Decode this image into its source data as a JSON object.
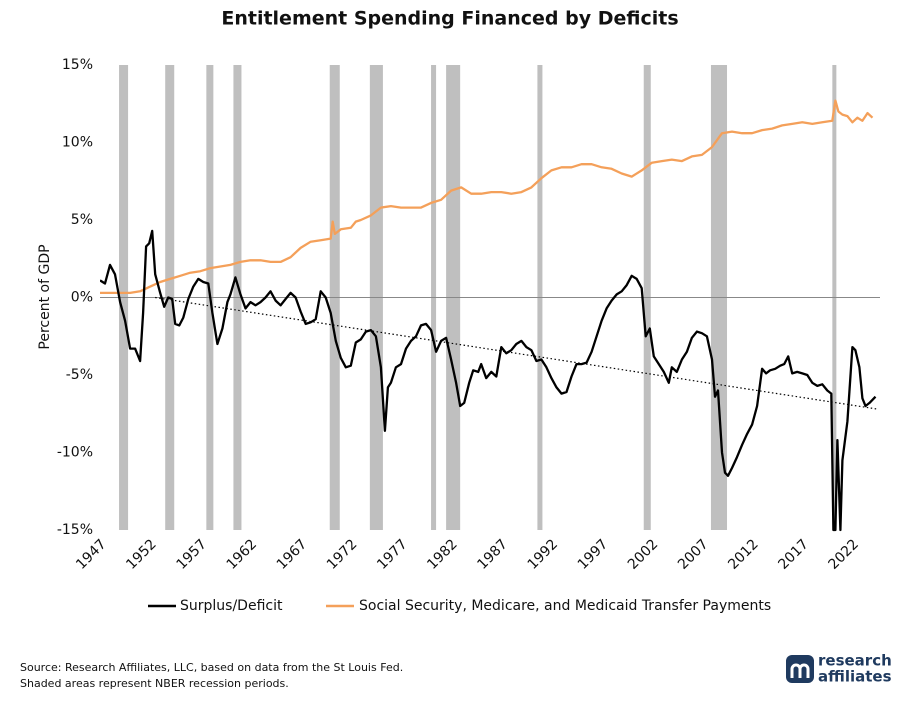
{
  "chart_data": {
    "type": "line",
    "title": "Entitlement Spending Financed by Deficits",
    "y_label": "Percent of GDP",
    "xlim": [
      1947,
      2024.75
    ],
    "ylim": [
      -15,
      15
    ],
    "xticks": [
      1947,
      1952,
      1957,
      1962,
      1967,
      1972,
      1977,
      1982,
      1987,
      1992,
      1997,
      2002,
      2007,
      2012,
      2017,
      2022
    ],
    "yticks": [
      {
        "value": 15,
        "label": "15%"
      },
      {
        "value": 10,
        "label": "10%"
      },
      {
        "value": 5,
        "label": "5%"
      },
      {
        "value": 0,
        "label": "0%"
      },
      {
        "value": -5,
        "label": "-5%"
      },
      {
        "value": -10,
        "label": "-10%"
      },
      {
        "value": -15,
        "label": "-15%"
      }
    ],
    "recession_color": "#bfbfbf",
    "recessions": [
      [
        1948.9,
        1949.8
      ],
      [
        1953.5,
        1954.4
      ],
      [
        1957.6,
        1958.3
      ],
      [
        1960.3,
        1961.1
      ],
      [
        1969.9,
        1970.9
      ],
      [
        1973.9,
        1975.2
      ],
      [
        1980.0,
        1980.5
      ],
      [
        1981.5,
        1982.9
      ],
      [
        1990.6,
        1991.1
      ],
      [
        2001.2,
        2001.9
      ],
      [
        2007.9,
        2009.5
      ],
      [
        2020.0,
        2020.4
      ]
    ],
    "series": [
      {
        "name": "Surplus/Deficit",
        "color": "#000000",
        "x": [
          1947,
          1947.5,
          1948,
          1948.5,
          1949,
          1949.5,
          1950,
          1950.5,
          1951,
          1951.3,
          1951.6,
          1951.9,
          1952.2,
          1952.5,
          1953,
          1953.4,
          1953.8,
          1954.2,
          1954.5,
          1954.9,
          1955.3,
          1955.8,
          1956.3,
          1956.8,
          1957.3,
          1957.8,
          1958.2,
          1958.7,
          1959.2,
          1959.7,
          1960,
          1960.5,
          1961,
          1961.5,
          1962,
          1962.5,
          1963,
          1963.5,
          1964,
          1964.5,
          1965,
          1965.5,
          1966,
          1966.5,
          1967,
          1967.5,
          1968,
          1968.5,
          1969,
          1969.5,
          1970,
          1970.5,
          1971,
          1971.5,
          1972,
          1972.5,
          1973,
          1973.5,
          1974,
          1974.5,
          1975,
          1975.4,
          1975.7,
          1976,
          1976.5,
          1977,
          1977.5,
          1978,
          1978.5,
          1979,
          1979.5,
          1980,
          1980.5,
          1981,
          1981.5,
          1982,
          1982.5,
          1982.9,
          1983.3,
          1983.8,
          1984.2,
          1984.7,
          1985,
          1985.5,
          1986,
          1986.5,
          1987,
          1987.5,
          1988,
          1988.5,
          1989,
          1989.5,
          1990,
          1990.5,
          1991,
          1991.5,
          1992,
          1992.5,
          1993,
          1993.5,
          1994,
          1994.5,
          1995,
          1995.5,
          1996,
          1996.5,
          1997,
          1997.5,
          1998,
          1998.5,
          1999,
          1999.5,
          2000,
          2000.5,
          2001,
          2001.4,
          2001.8,
          2002.2,
          2002.7,
          2003.2,
          2003.7,
          2004,
          2004.5,
          2005,
          2005.5,
          2006,
          2006.5,
          2007,
          2007.5,
          2008,
          2008.3,
          2008.6,
          2009,
          2009.3,
          2009.6,
          2010,
          2010.5,
          2011,
          2011.5,
          2012,
          2012.5,
          2013,
          2013.4,
          2013.8,
          2014.3,
          2014.8,
          2015.2,
          2015.6,
          2016,
          2016.5,
          2017,
          2017.5,
          2018,
          2018.5,
          2019,
          2019.5,
          2019.9,
          2020.1,
          2020.3,
          2020.5,
          2020.8,
          2021,
          2021.5,
          2022,
          2022.3,
          2022.7,
          2023,
          2023.3,
          2023.7,
          2024.3
        ],
        "values": [
          1.1,
          0.9,
          2.1,
          1.5,
          -0.3,
          -1.5,
          -3.3,
          -3.3,
          -4.1,
          -1,
          3.3,
          3.5,
          4.3,
          1.5,
          0.3,
          -0.6,
          0,
          -0.1,
          -1.7,
          -1.8,
          -1.3,
          -0.1,
          0.7,
          1.2,
          1.0,
          0.9,
          -1,
          -3,
          -2,
          -0.3,
          0.2,
          1.3,
          0.2,
          -0.7,
          -0.3,
          -0.5,
          -0.3,
          0,
          0.4,
          -0.2,
          -0.5,
          -0.1,
          0.3,
          0.0,
          -0.9,
          -1.7,
          -1.6,
          -1.4,
          0.4,
          0,
          -1,
          -2.8,
          -3.9,
          -4.5,
          -4.4,
          -2.9,
          -2.7,
          -2.2,
          -2.1,
          -2.5,
          -4.5,
          -8.6,
          -5.8,
          -5.5,
          -4.5,
          -4.3,
          -3.3,
          -2.8,
          -2.5,
          -1.8,
          -1.7,
          -2.1,
          -3.5,
          -2.8,
          -2.6,
          -4,
          -5.5,
          -7,
          -6.8,
          -5.5,
          -4.7,
          -4.8,
          -4.3,
          -5.2,
          -4.8,
          -5.1,
          -3.2,
          -3.6,
          -3.4,
          -3.0,
          -2.8,
          -3.2,
          -3.4,
          -4.1,
          -4.0,
          -4.5,
          -5.2,
          -5.8,
          -6.2,
          -6.1,
          -5.1,
          -4.3,
          -4.3,
          -4.2,
          -3.5,
          -2.5,
          -1.5,
          -0.7,
          -0.2,
          0.2,
          0.4,
          0.8,
          1.4,
          1.2,
          0.6,
          -2.5,
          -2.0,
          -3.8,
          -4.3,
          -4.8,
          -5.5,
          -4.5,
          -4.8,
          -4.0,
          -3.5,
          -2.6,
          -2.2,
          -2.3,
          -2.5,
          -4,
          -6.4,
          -6,
          -10.0,
          -11.3,
          -11.5,
          -11.0,
          -10.3,
          -9.5,
          -8.8,
          -8.2,
          -7,
          -4.6,
          -4.9,
          -4.7,
          -4.6,
          -4.4,
          -4.3,
          -3.8,
          -4.9,
          -4.8,
          -4.9,
          -5.0,
          -5.5,
          -5.7,
          -5.6,
          -6.0,
          -6.2,
          -15,
          -15,
          -9.2,
          -15,
          -10.5,
          -8,
          -3.2,
          -3.4,
          -4.5,
          -6.5,
          -7,
          -6.8,
          -6.4
        ]
      },
      {
        "name": "Social Security, Medicare, and Medicaid Transfer Payments",
        "color": "#f4a05a",
        "x": [
          1947,
          1950,
          1951,
          1952,
          1953,
          1954,
          1955,
          1956,
          1957,
          1958,
          1959,
          1960,
          1961,
          1962,
          1963,
          1964,
          1965,
          1966,
          1967,
          1968,
          1969,
          1970,
          1970.2,
          1970.4,
          1971,
          1972,
          1972.5,
          1973,
          1974,
          1975,
          1976,
          1977,
          1978,
          1979,
          1980,
          1981,
          1982,
          1983,
          1984,
          1985,
          1986,
          1987,
          1988,
          1989,
          1990,
          1991,
          1992,
          1993,
          1994,
          1995,
          1996,
          1997,
          1998,
          1999,
          2000,
          2001,
          2002,
          2003,
          2004,
          2005,
          2006,
          2007,
          2008,
          2009,
          2010,
          2011,
          2012,
          2013,
          2014,
          2015,
          2016,
          2017,
          2018,
          2019,
          2020,
          2020.3,
          2020.6,
          2021,
          2021.5,
          2022,
          2022.5,
          2023,
          2023.5,
          2024
        ],
        "values": [
          0.3,
          0.3,
          0.4,
          0.7,
          1.0,
          1.2,
          1.4,
          1.6,
          1.7,
          1.9,
          2.0,
          2.1,
          2.3,
          2.4,
          2.4,
          2.3,
          2.3,
          2.6,
          3.2,
          3.6,
          3.7,
          3.8,
          4.9,
          4.1,
          4.4,
          4.5,
          4.9,
          5.0,
          5.3,
          5.8,
          5.9,
          5.8,
          5.8,
          5.8,
          6.1,
          6.3,
          6.9,
          7.1,
          6.7,
          6.7,
          6.8,
          6.8,
          6.7,
          6.8,
          7.1,
          7.7,
          8.2,
          8.4,
          8.4,
          8.6,
          8.6,
          8.4,
          8.3,
          8.0,
          7.8,
          8.2,
          8.7,
          8.8,
          8.9,
          8.8,
          9.1,
          9.2,
          9.7,
          10.6,
          10.7,
          10.6,
          10.6,
          10.8,
          10.9,
          11.1,
          11.2,
          11.3,
          11.2,
          11.3,
          11.4,
          12.7,
          12.0,
          11.8,
          11.7,
          11.3,
          11.6,
          11.4,
          11.9,
          11.6
        ]
      }
    ],
    "trend": {
      "x": [
        1952.5,
        2024.5
      ],
      "values": [
        0,
        -7.2
      ]
    },
    "source": "Source: Research Affiliates, LLC, based on data from the St Louis Fed.",
    "note": "Shaded areas represent NBER recession periods.",
    "logo": [
      "research",
      "affiliates"
    ]
  }
}
